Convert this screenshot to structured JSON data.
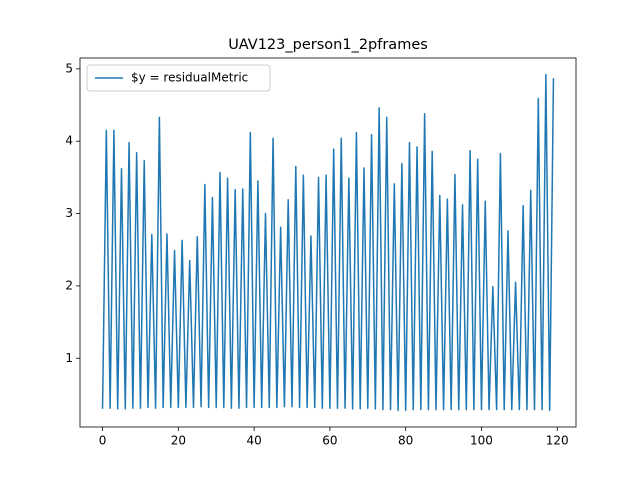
{
  "chart_data": {
    "type": "line",
    "title": "UAV123_person1_2pframes",
    "x": [
      0,
      1,
      2,
      3,
      4,
      5,
      6,
      7,
      8,
      9,
      10,
      11,
      12,
      13,
      14,
      15,
      16,
      17,
      18,
      19,
      20,
      21,
      22,
      23,
      24,
      25,
      26,
      27,
      28,
      29,
      30,
      31,
      32,
      33,
      34,
      35,
      36,
      37,
      38,
      39,
      40,
      41,
      42,
      43,
      44,
      45,
      46,
      47,
      48,
      49,
      50,
      51,
      52,
      53,
      54,
      55,
      56,
      57,
      58,
      59,
      60,
      61,
      62,
      63,
      64,
      65,
      66,
      67,
      68,
      69,
      70,
      71,
      72,
      73,
      74,
      75,
      76,
      77,
      78,
      79,
      80,
      81,
      82,
      83,
      84,
      85,
      86,
      87,
      88,
      89,
      90,
      91,
      92,
      93,
      94,
      95,
      96,
      97,
      98,
      99,
      100,
      101,
      102,
      103,
      104,
      105,
      106,
      107,
      108,
      109,
      110,
      111,
      112,
      113,
      114,
      115,
      116,
      117,
      118,
      119
    ],
    "series": [
      {
        "name": "$y = residualMetric",
        "color": "#1f77b4",
        "values": [
          0.3,
          4.15,
          0.31,
          4.15,
          0.3,
          3.62,
          0.3,
          3.98,
          0.31,
          3.84,
          0.31,
          3.73,
          0.32,
          2.71,
          0.31,
          4.33,
          0.32,
          2.72,
          0.32,
          2.49,
          0.32,
          2.63,
          0.32,
          2.35,
          0.32,
          2.68,
          0.33,
          3.4,
          0.32,
          3.22,
          0.32,
          3.57,
          0.32,
          3.49,
          0.31,
          3.33,
          0.31,
          3.34,
          0.32,
          4.12,
          0.32,
          3.45,
          0.32,
          3.0,
          0.32,
          4.04,
          0.32,
          2.81,
          0.33,
          3.19,
          0.33,
          3.65,
          0.32,
          3.53,
          0.32,
          2.69,
          0.32,
          3.5,
          0.31,
          3.53,
          0.31,
          3.89,
          0.31,
          4.04,
          0.31,
          3.49,
          0.3,
          4.12,
          0.3,
          3.63,
          0.31,
          4.09,
          0.3,
          4.46,
          0.29,
          4.33,
          0.29,
          3.41,
          0.28,
          3.69,
          0.28,
          3.98,
          0.29,
          3.92,
          0.29,
          4.38,
          0.29,
          3.86,
          0.29,
          3.25,
          0.29,
          3.2,
          0.29,
          3.54,
          0.29,
          3.12,
          0.29,
          3.87,
          0.29,
          3.75,
          0.29,
          3.17,
          0.29,
          1.99,
          0.29,
          3.83,
          0.29,
          2.76,
          0.29,
          2.05,
          0.29,
          3.11,
          0.29,
          3.32,
          0.29,
          4.59,
          0.29,
          4.92,
          0.28,
          4.87
        ]
      }
    ],
    "xlim": [
      -5.95,
      124.95
    ],
    "ylim": [
      0.05,
      5.15
    ],
    "xticks": [
      0,
      20,
      40,
      60,
      80,
      100,
      120
    ],
    "yticks": [
      1,
      2,
      3,
      4,
      5
    ],
    "legend": "upper left"
  }
}
